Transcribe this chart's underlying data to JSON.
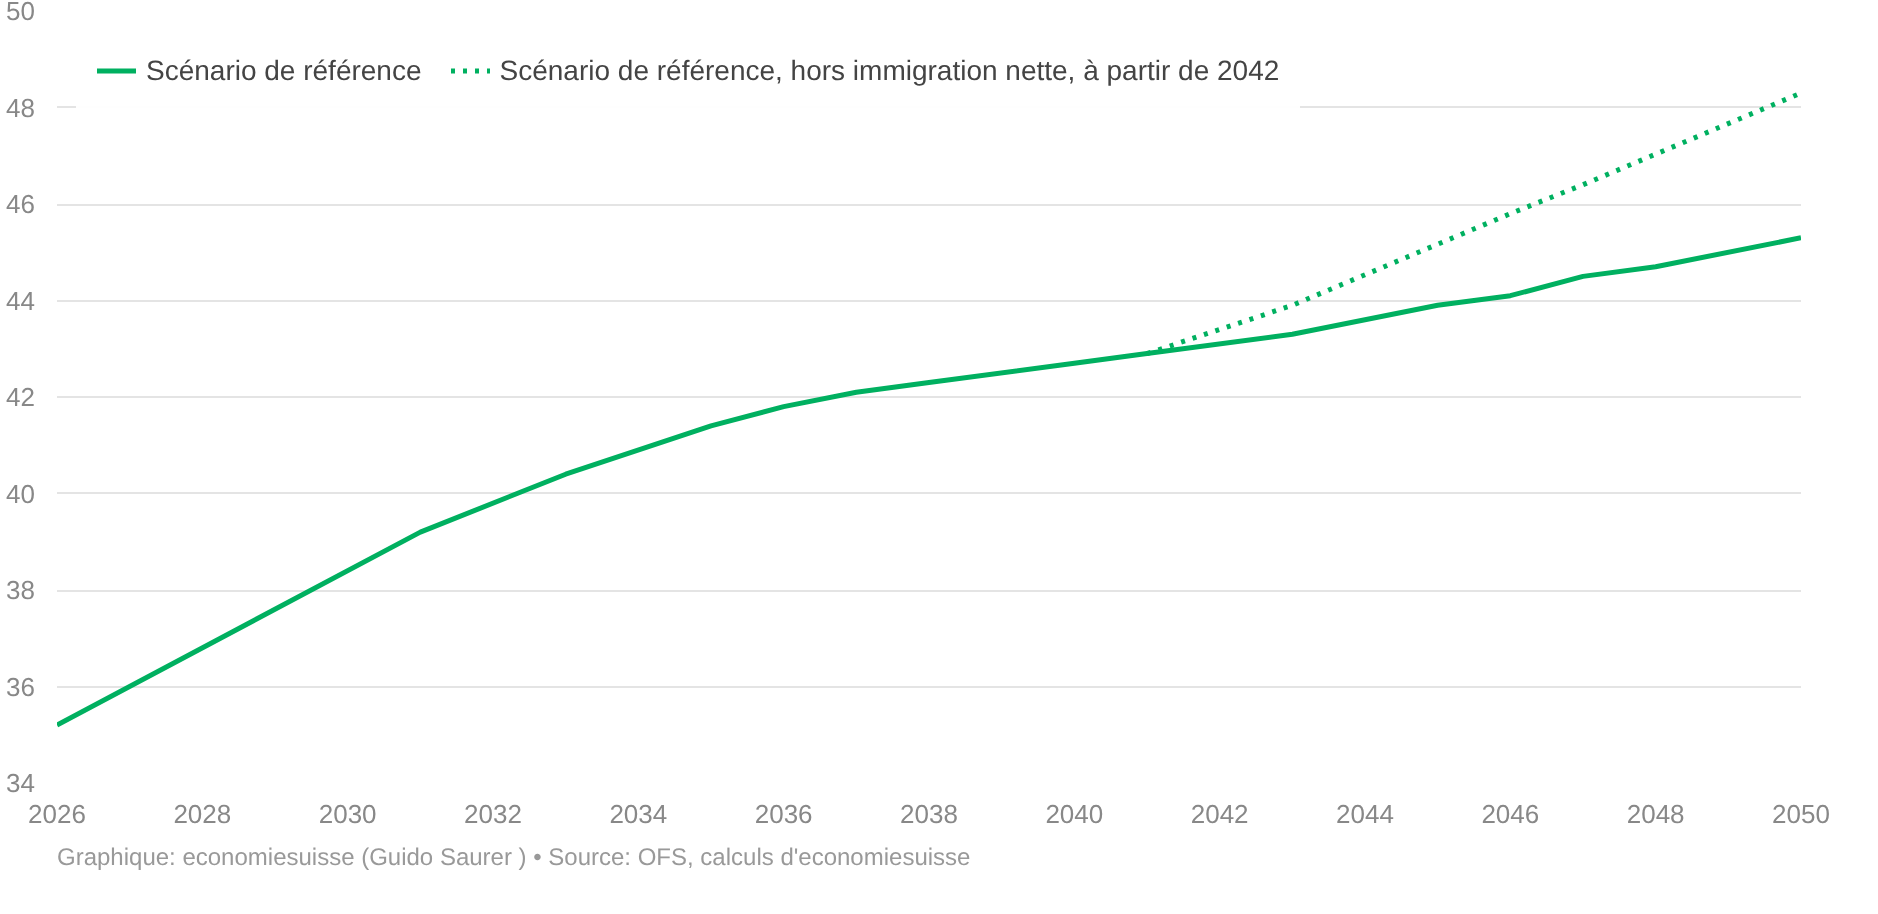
{
  "chart_data": {
    "type": "line",
    "series": [
      {
        "name": "Scénario de référence",
        "color": "#00b060",
        "line_style": "solid",
        "x": [
          2026,
          2031,
          2033,
          2035,
          2036,
          2037,
          2038,
          2040,
          2041,
          2043,
          2045,
          2046,
          2047,
          2048,
          2050
        ],
        "values": [
          35.2,
          39.2,
          40.4,
          41.4,
          41.8,
          42.1,
          42.3,
          42.7,
          42.9,
          43.3,
          43.9,
          44.1,
          44.5,
          44.7,
          45.3
        ]
      },
      {
        "name": "Scénario de référence, hors immigration nette, à partir de 2042",
        "color": "#00b060",
        "line_style": "dotted",
        "x": [
          2041,
          2043,
          2046,
          2047,
          2050
        ],
        "values": [
          42.9,
          43.9,
          45.8,
          46.4,
          48.3
        ]
      }
    ],
    "xlim": [
      2026,
      2050
    ],
    "xticks": [
      2026,
      2028,
      2030,
      2032,
      2034,
      2036,
      2038,
      2040,
      2042,
      2044,
      2046,
      2048,
      2050
    ],
    "ylim": [
      34,
      50
    ],
    "yticks": [
      34,
      36,
      38,
      40,
      42,
      44,
      46,
      48,
      50
    ],
    "grid": "y",
    "legend": "top left",
    "annotations": [
      "Graphique: economiesuisse (Guido Saurer ) • Source: OFS, calculs d'economiesuisse"
    ]
  }
}
